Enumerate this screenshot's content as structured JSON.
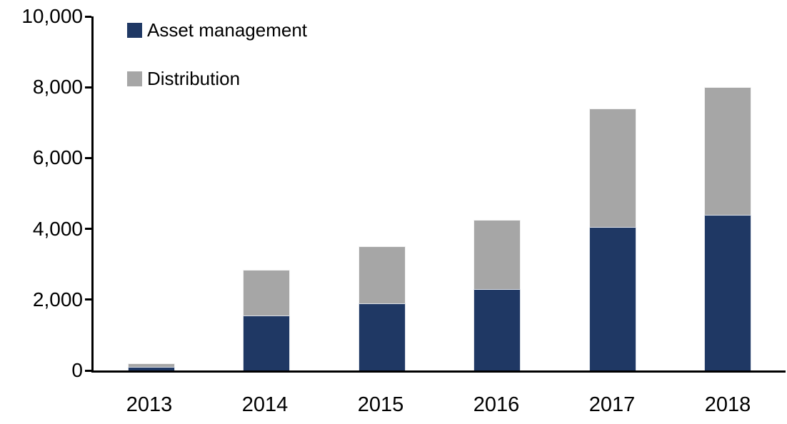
{
  "chart_data": {
    "type": "bar",
    "stacked": true,
    "title": "",
    "xlabel": "",
    "ylabel": "",
    "categories": [
      "2013",
      "2014",
      "2015",
      "2016",
      "2017",
      "2018"
    ],
    "series": [
      {
        "name": "Asset management",
        "color": "#1F3864",
        "values": [
          100,
          1550,
          1900,
          2300,
          4050,
          4400
        ]
      },
      {
        "name": "Distribution",
        "color": "#A6A6A6",
        "values": [
          100,
          1300,
          1600,
          1950,
          3350,
          3600
        ]
      }
    ],
    "totals": [
      200,
      2850,
      3500,
      4250,
      7400,
      8000
    ],
    "ylim": [
      0,
      10000
    ],
    "ytick_interval": 2000,
    "ytick_labels": [
      "0",
      "2,000",
      "4,000",
      "6,000",
      "8,000",
      "10,000"
    ],
    "legend_position": "top-left",
    "grid": false,
    "axis_color": "#000000",
    "background_color": "#FFFFFF"
  }
}
